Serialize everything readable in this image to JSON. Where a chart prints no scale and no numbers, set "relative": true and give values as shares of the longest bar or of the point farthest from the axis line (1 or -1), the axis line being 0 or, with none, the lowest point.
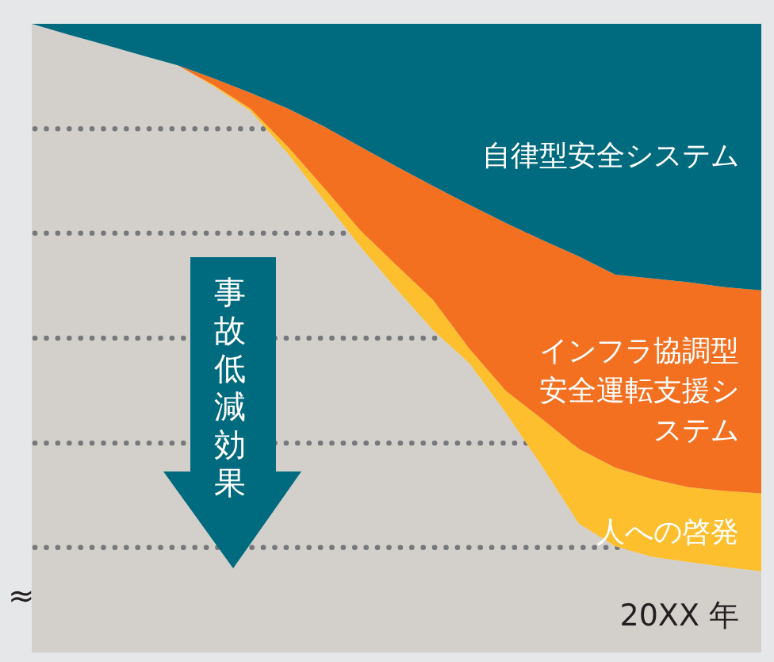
{
  "chart_data": {
    "type": "area",
    "stacked": true,
    "relative": true,
    "categories": [
      null,
      null,
      null,
      null,
      null,
      null,
      null,
      null,
      null,
      null,
      null,
      null,
      null,
      null,
      null,
      null,
      null,
      null,
      null,
      null,
      null
    ],
    "series": [
      {
        "color": "#d3d0cb",
        "values": [
          1.0,
          0.983,
          0.967,
          0.95,
          0.934,
          0.9,
          0.861,
          0.795,
          0.72,
          0.646,
          0.578,
          0.513,
          0.46,
          0.381,
          0.295,
          0.205,
          0.169,
          0.152,
          0.144,
          0.136,
          0.129
        ]
      },
      {
        "name": "人への啓発",
        "color": "#fdbf2d",
        "values": [
          0,
          0,
          0,
          0,
          0,
          0.002,
          0.004,
          0.011,
          0.02,
          0.026,
          0.038,
          0.048,
          0.023,
          0.035,
          0.076,
          0.119,
          0.125,
          0.124,
          0.119,
          0.121,
          0.124
        ]
      },
      {
        "name": "インフラ協調型安全運転支援システム",
        "color": "#f37021",
        "values": [
          0,
          0,
          0,
          0,
          0,
          0.011,
          0.025,
          0.06,
          0.097,
          0.133,
          0.157,
          0.181,
          0.229,
          0.267,
          0.285,
          0.306,
          0.307,
          0.319,
          0.326,
          0.324,
          0.323
        ]
      },
      {
        "name": "自律型安全システム",
        "color": "#006a7e",
        "values": [
          0,
          0.017,
          0.033,
          0.05,
          0.066,
          0.087,
          0.11,
          0.134,
          0.163,
          0.195,
          0.227,
          0.258,
          0.288,
          0.317,
          0.344,
          0.37,
          0.399,
          0.405,
          0.411,
          0.419,
          0.424
        ]
      }
    ],
    "xlabel": "20XX 年",
    "annotations": [
      "事故低減効果",
      "≈"
    ],
    "ref_lines": [
      {
        "axis": "y",
        "value": 0.833,
        "color": "#77787b",
        "line_style": "dotted"
      },
      {
        "axis": "y",
        "value": 0.667,
        "color": "#77787b",
        "line_style": "dotted"
      },
      {
        "axis": "y",
        "value": 0.5,
        "color": "#77787b",
        "line_style": "dotted"
      },
      {
        "axis": "y",
        "value": 0.333,
        "color": "#77787b",
        "line_style": "dotted"
      },
      {
        "axis": "y",
        "value": 0.167,
        "color": "#77787b",
        "line_style": "dotted"
      }
    ]
  }
}
